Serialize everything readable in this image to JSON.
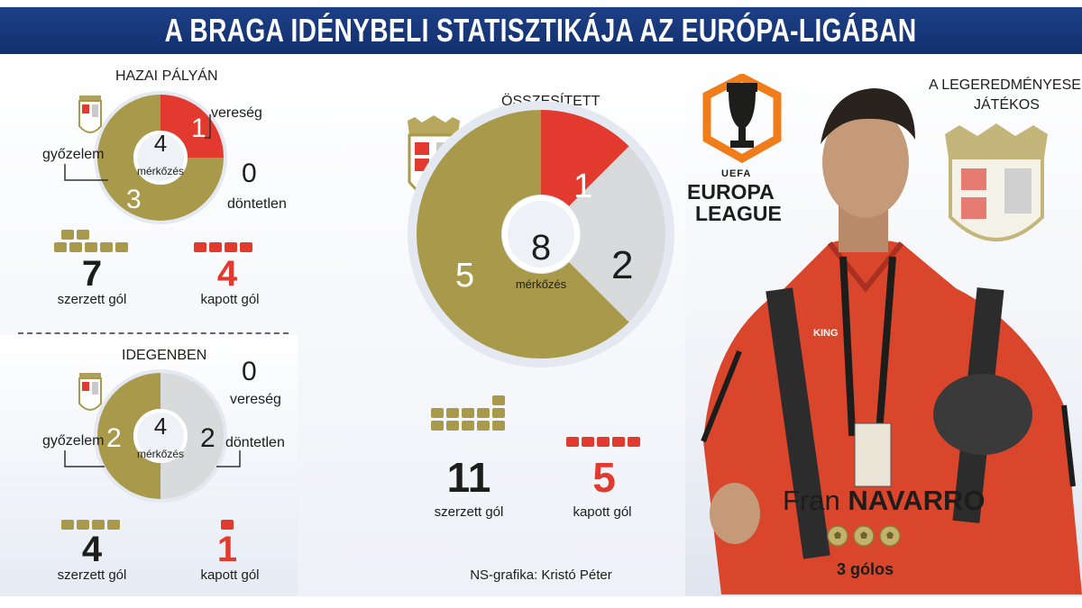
{
  "title": "A BRAGA IDÉNYBELI STATISZTIKÁJA AZ EURÓPA-LIGÁBAN",
  "colors": {
    "win": "#a89a4a",
    "loss": "#e23a2f",
    "draw": "#d9dadc",
    "title_bg": "#1d3f86"
  },
  "home": {
    "label": "HAZAI PÁLYÁN",
    "total": "4",
    "total_label": "mérkőzés",
    "win_label": "győzelem",
    "win_value": "3",
    "loss_label": "vereség",
    "loss_value": "1",
    "draw_label": "döntetlen",
    "draw_value": "0",
    "scored": "7",
    "scored_label": "szerzett gól",
    "conceded": "4",
    "conceded_label": "kapott gól"
  },
  "away": {
    "label": "IDEGENBEN",
    "total": "4",
    "total_label": "mérkőzés",
    "win_label": "győzelem",
    "win_value": "2",
    "loss_label": "vereség",
    "loss_value": "0",
    "draw_label": "döntetlen",
    "draw_value": "2",
    "scored": "4",
    "scored_label": "szerzett gól",
    "conceded": "1",
    "conceded_label": "kapott gól"
  },
  "overall": {
    "label": "ÖSSZESÍTETT",
    "total": "8",
    "total_label": "mérkőzés",
    "win_value": "5",
    "loss_value": "1",
    "draw_value": "2",
    "scored": "11",
    "scored_label": "szerzett gól",
    "conceded": "5",
    "conceded_label": "kapott gól"
  },
  "logo": {
    "uefa": "UEFA",
    "line1": "EUROPA",
    "line2": "LEAGUE"
  },
  "player": {
    "heading_line1": "A LEGEREDMÉNYESEBB",
    "heading_line2": "JÁTÉKOS",
    "first_name": "Fran",
    "last_name": "NAVARRO",
    "goals_text": "3 gólos",
    "goals_count": 3,
    "shirt_text": "KING"
  },
  "credit": "NS-grafika: Kristó Péter",
  "chart_data": [
    {
      "type": "pie",
      "title": "HAZAI PÁLYÁN",
      "categories": [
        "győzelem",
        "vereség",
        "döntetlen"
      ],
      "values": [
        3,
        1,
        0
      ],
      "center_value": 4
    },
    {
      "type": "pie",
      "title": "IDEGENBEN",
      "categories": [
        "győzelem",
        "vereség",
        "döntetlen"
      ],
      "values": [
        2,
        0,
        2
      ],
      "center_value": 4
    },
    {
      "type": "pie",
      "title": "ÖSSZESÍTETT",
      "categories": [
        "győzelem",
        "vereség",
        "döntetlen"
      ],
      "values": [
        5,
        1,
        2
      ],
      "center_value": 8
    },
    {
      "type": "bar",
      "title": "HAZAI PÁLYÁN",
      "categories": [
        "szerzett gól",
        "kapott gól"
      ],
      "values": [
        7,
        4
      ]
    },
    {
      "type": "bar",
      "title": "IDEGENBEN",
      "categories": [
        "szerzett gól",
        "kapott gól"
      ],
      "values": [
        4,
        1
      ]
    },
    {
      "type": "bar",
      "title": "ÖSSZESÍTETT",
      "categories": [
        "szerzett gól",
        "kapott gól"
      ],
      "values": [
        11,
        5
      ]
    }
  ]
}
